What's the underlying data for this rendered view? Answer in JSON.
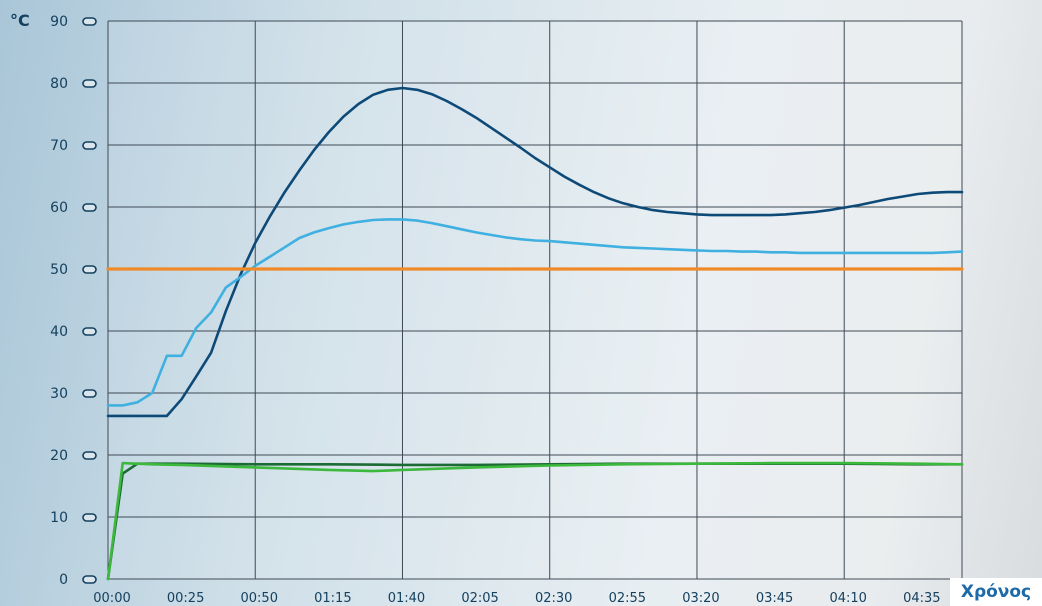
{
  "chart_data": {
    "type": "line",
    "ylabel": "°C",
    "xlabel": "Χρόνος",
    "ylim": [
      0,
      90
    ],
    "y_ticks": [
      "0",
      "10",
      "20",
      "30",
      "40",
      "50",
      "60",
      "70",
      "80",
      "90"
    ],
    "x_ticks": [
      "00:00",
      "00:25",
      "00:50",
      "01:15",
      "01:40",
      "02:05",
      "02:30",
      "02:55",
      "03:20",
      "03:45",
      "04:10",
      "04:35"
    ],
    "grid": true,
    "series": [
      {
        "color": "#0e4a78",
        "x": [
          "00:00",
          "00:05",
          "00:10",
          "00:15",
          "00:20",
          "00:25",
          "00:30",
          "00:35",
          "00:40",
          "00:45",
          "00:50",
          "00:55",
          "01:00",
          "01:05",
          "01:10",
          "01:15",
          "01:20",
          "01:25",
          "01:30",
          "01:35",
          "01:40",
          "01:45",
          "01:50",
          "01:55",
          "02:00",
          "02:05",
          "02:10",
          "02:15",
          "02:20",
          "02:25",
          "02:30",
          "02:35",
          "02:40",
          "02:45",
          "02:50",
          "02:55",
          "03:00",
          "03:05",
          "03:10",
          "03:15",
          "03:20",
          "03:25",
          "03:30",
          "03:35",
          "03:40",
          "03:45",
          "03:50",
          "03:55",
          "04:00",
          "04:05",
          "04:10",
          "04:15",
          "04:20",
          "04:25",
          "04:30",
          "04:35",
          "04:40",
          "04:45",
          "04:50"
        ],
        "values": [
          26.3,
          26.3,
          26.3,
          26.3,
          26.3,
          29.0,
          32.7,
          36.5,
          43.2,
          49.1,
          54.2,
          58.5,
          62.4,
          65.9,
          69.2,
          72.1,
          74.6,
          76.6,
          78.1,
          78.9,
          79.2,
          78.9,
          78.2,
          77.1,
          75.8,
          74.4,
          72.8,
          71.2,
          69.6,
          67.9,
          66.4,
          64.9,
          63.6,
          62.4,
          61.4,
          60.6,
          60.0,
          59.5,
          59.2,
          59.0,
          58.8,
          58.7,
          58.7,
          58.7,
          58.7,
          58.7,
          58.8,
          59.0,
          59.2,
          59.5,
          59.9,
          60.3,
          60.8,
          61.3,
          61.7,
          62.1,
          62.3,
          62.4,
          62.4
        ]
      },
      {
        "color": "#3fb0e0",
        "x": [
          "00:00",
          "00:05",
          "00:10",
          "00:15",
          "00:20",
          "00:25",
          "00:30",
          "00:35",
          "00:40",
          "00:45",
          "00:50",
          "00:55",
          "01:00",
          "01:05",
          "01:10",
          "01:15",
          "01:20",
          "01:25",
          "01:30",
          "01:35",
          "01:40",
          "01:45",
          "01:50",
          "01:55",
          "02:00",
          "02:05",
          "02:10",
          "02:15",
          "02:20",
          "02:25",
          "02:30",
          "02:35",
          "02:40",
          "02:45",
          "02:50",
          "02:55",
          "03:00",
          "03:05",
          "03:10",
          "03:15",
          "03:20",
          "03:25",
          "03:30",
          "03:35",
          "03:40",
          "03:45",
          "03:50",
          "03:55",
          "04:00",
          "04:05",
          "04:10",
          "04:15",
          "04:20",
          "04:25",
          "04:30",
          "04:35",
          "04:40",
          "04:45",
          "04:50"
        ],
        "values": [
          28.0,
          28.0,
          28.5,
          30.0,
          36.0,
          36.0,
          40.5,
          43.0,
          47.0,
          48.7,
          50.5,
          52.0,
          53.5,
          55.0,
          55.9,
          56.6,
          57.2,
          57.6,
          57.9,
          58.0,
          58.0,
          57.8,
          57.4,
          56.9,
          56.4,
          55.9,
          55.5,
          55.1,
          54.8,
          54.6,
          54.5,
          54.3,
          54.1,
          53.9,
          53.7,
          53.5,
          53.4,
          53.3,
          53.2,
          53.1,
          53.0,
          52.9,
          52.9,
          52.8,
          52.8,
          52.7,
          52.7,
          52.6,
          52.6,
          52.6,
          52.6,
          52.6,
          52.6,
          52.6,
          52.6,
          52.6,
          52.6,
          52.7,
          52.8
        ]
      },
      {
        "color": "#f08a28",
        "x": [
          "00:00",
          "04:50"
        ],
        "values": [
          50,
          50
        ]
      },
      {
        "color": "#1c6b34",
        "x": [
          "00:00",
          "00:05",
          "00:10",
          "00:15",
          "00:25",
          "00:50",
          "01:15",
          "01:40",
          "02:05",
          "02:30",
          "02:55",
          "03:20",
          "03:45",
          "04:10",
          "04:35",
          "04:50"
        ],
        "values": [
          0,
          17.0,
          18.6,
          18.6,
          18.6,
          18.5,
          18.5,
          18.4,
          18.4,
          18.5,
          18.6,
          18.6,
          18.6,
          18.6,
          18.5,
          18.5
        ]
      },
      {
        "color": "#3cb83c",
        "x": [
          "00:00",
          "00:05",
          "00:10",
          "00:15",
          "00:25",
          "00:50",
          "01:15",
          "01:30",
          "01:40",
          "02:05",
          "02:30",
          "02:55",
          "03:20",
          "03:45",
          "04:10",
          "04:35",
          "04:50"
        ],
        "values": [
          0,
          18.7,
          18.6,
          18.5,
          18.4,
          18.0,
          17.6,
          17.4,
          17.6,
          18.0,
          18.3,
          18.5,
          18.6,
          18.7,
          18.7,
          18.6,
          18.5
        ]
      }
    ]
  }
}
